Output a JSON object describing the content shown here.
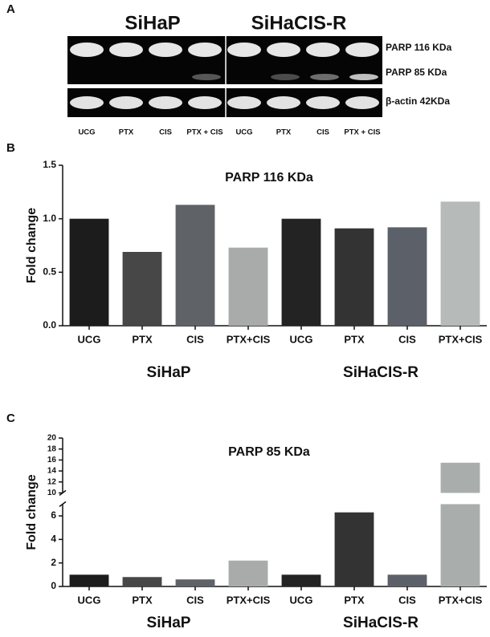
{
  "blot": {
    "panel": "A",
    "groups": [
      "SiHaP",
      "SiHaCIS-R"
    ],
    "bands": [
      "PARP 116 KDa",
      "PARP 85 KDa",
      "β-actin 42KDa"
    ],
    "lanes": [
      "UCG",
      "PTX",
      "CIS",
      "PTX + CIS",
      "UCG",
      "PTX",
      "CIS",
      "PTX + CIS"
    ]
  },
  "chart_data": [
    {
      "panel": "B",
      "type": "bar",
      "title": "PARP 116 KDa",
      "y_label": "Fold change",
      "categories": [
        "UCG",
        "PTX",
        "CIS",
        "PTX+CIS",
        "UCG",
        "PTX",
        "CIS",
        "PTX+CIS"
      ],
      "groups": [
        "SiHaP",
        "SiHaCIS-R"
      ],
      "values": [
        1.0,
        0.69,
        1.13,
        0.73,
        1.0,
        0.91,
        0.92,
        1.16
      ],
      "colors": [
        "#1c1c1c",
        "#474747",
        "#5f6368",
        "#a9abaa",
        "#232323",
        "#333333",
        "#5c6169",
        "#b6bab8"
      ],
      "ylim": [
        0,
        1.5
      ],
      "yticks": [
        {
          "value": 0,
          "label": "0.0"
        },
        {
          "value": 0.5,
          "label": "0.5"
        },
        {
          "value": 1,
          "label": "1.0"
        },
        {
          "value": 1.5,
          "label": "1.5"
        }
      ]
    },
    {
      "panel": "C",
      "type": "bar",
      "title": "PARP 85 KDa",
      "y_label": "Fold change",
      "categories": [
        "UCG",
        "PTX",
        "CIS",
        "PTX+CIS",
        "UCG",
        "PTX",
        "CIS",
        "PTX+CIS"
      ],
      "groups": [
        "SiHaP",
        "SiHaCIS-R"
      ],
      "values": [
        1.0,
        0.8,
        0.6,
        2.2,
        1.0,
        6.3,
        1.0,
        15.5
      ],
      "colors": [
        "#1c1c1c",
        "#474747",
        "#5f6368",
        "#a9abaa",
        "#232323",
        "#333333",
        "#5c6169",
        "#a9aeac"
      ],
      "ylim": [
        0,
        20
      ],
      "axis_break": [
        7,
        10
      ],
      "yticks": [
        0,
        2,
        4,
        6,
        10,
        12,
        14,
        16,
        18,
        20
      ]
    }
  ]
}
